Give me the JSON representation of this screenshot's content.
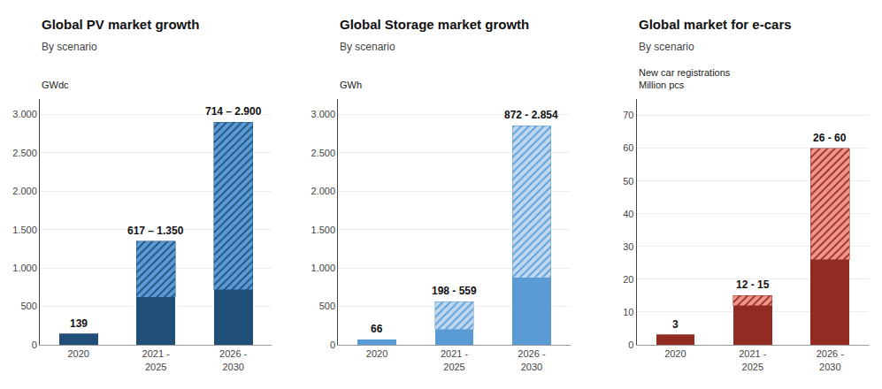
{
  "chart_data": [
    {
      "type": "bar",
      "stacked": true,
      "grid": true,
      "title": "Global PV market growth",
      "subtitle": "By scenario",
      "ylabel": "GWdc",
      "categories": [
        "2020",
        "2021 -\n2025",
        "2026 -\n2030"
      ],
      "series": [
        {
          "color": "#1f4e79",
          "values": [
            139,
            617,
            714
          ]
        },
        {
          "color": "#5b9bd5",
          "marker": "hatch",
          "values": [
            0,
            733,
            2186
          ]
        }
      ],
      "annotations": [
        "139",
        "617 – 1.350",
        "714 – 2.900"
      ],
      "ylim": [
        0,
        3200
      ],
      "yticks": [
        0,
        500,
        {
          "value": 1000,
          "label": "1.000"
        },
        {
          "value": 1500,
          "label": "1.500"
        },
        {
          "value": 2000,
          "label": "2.000"
        },
        {
          "value": 2500,
          "label": "2.500"
        },
        {
          "value": 3000,
          "label": "3.000"
        }
      ]
    },
    {
      "type": "bar",
      "stacked": true,
      "grid": true,
      "title": "Global Storage market growth",
      "subtitle": "By scenario",
      "ylabel": "GWh",
      "categories": [
        "2020",
        "2021 -\n2025",
        "2026 -\n2030"
      ],
      "series": [
        {
          "color": "#5b9bd5",
          "values": [
            66,
            198,
            872
          ]
        },
        {
          "color": "#bdd7ee",
          "marker": "hatch",
          "values": [
            0,
            361,
            1982
          ]
        }
      ],
      "annotations": [
        "66",
        "198 - 559",
        "872 - 2.854"
      ],
      "ylim": [
        0,
        3200
      ],
      "yticks": [
        0,
        500,
        {
          "value": 1000,
          "label": "1.000"
        },
        {
          "value": 1500,
          "label": "1.500"
        },
        {
          "value": 2000,
          "label": "2.000"
        },
        {
          "value": 2500,
          "label": "2.500"
        },
        {
          "value": 3000,
          "label": "3.000"
        }
      ]
    },
    {
      "type": "bar",
      "stacked": true,
      "grid": true,
      "title": "Global market for e-cars",
      "subtitle": "By scenario",
      "ylabel": "New car registrations\nMillion pcs",
      "categories": [
        "2020",
        "2021 -\n2025",
        "2026 -\n2030"
      ],
      "series": [
        {
          "color": "#922b21",
          "values": [
            3,
            12,
            26
          ]
        },
        {
          "color": "#f1948a",
          "marker": "hatch",
          "values": [
            0,
            3,
            34
          ]
        }
      ],
      "annotations": [
        "3",
        "12 - 15",
        "26 - 60"
      ],
      "ylim": [
        0,
        75
      ],
      "yticks": [
        0,
        10,
        20,
        30,
        40,
        50,
        60,
        70
      ]
    }
  ]
}
